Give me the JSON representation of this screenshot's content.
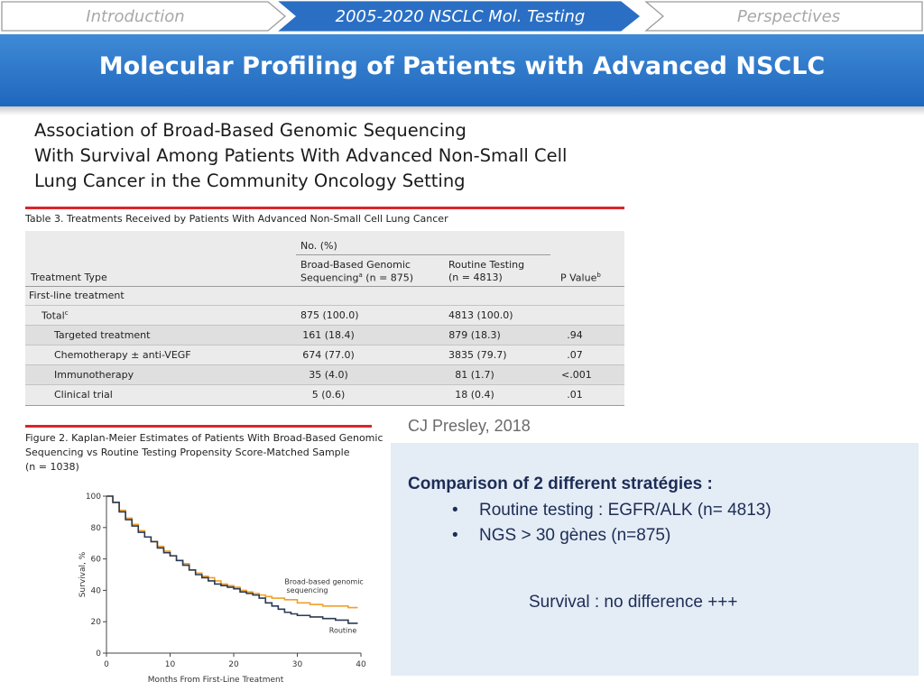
{
  "nav": {
    "steps": [
      {
        "label": "Introduction",
        "active": false
      },
      {
        "label": "2005-2020 NSCLC Mol. Testing",
        "active": true
      },
      {
        "label": "Perspectives",
        "active": false
      }
    ],
    "active_color": "#2a6fc4"
  },
  "banner": {
    "title": "Molecular Profiling of Patients with Advanced NSCLC"
  },
  "paper": {
    "title_lines": [
      "Association of Broad-Based Genomic Sequencing",
      "With Survival Among Patients With Advanced Non-Small Cell",
      "Lung Cancer in the Community Oncology Setting"
    ],
    "accent_color": "#d9262a"
  },
  "table": {
    "caption": "Table 3. Treatments Received by Patients With Advanced Non-Small Cell Lung Cancer",
    "header": {
      "col1": "Treatment Type",
      "group": "No. (%)",
      "col2_line1": "Broad-Based Genomic",
      "col2_line2_pre": "Sequencing",
      "col2_sup": "a",
      "col2_line2_post": " (n = 875)",
      "col3_line1": "Routine Testing",
      "col3_line2": "(n = 4813)",
      "col4": "P Value",
      "col4_sup": "b"
    },
    "section": "First-line treatment",
    "total": {
      "label": "Total",
      "sup": "c",
      "bbgs": "875 (100.0)",
      "routine": "4813 (100.0)"
    },
    "rows": [
      {
        "label": "Targeted treatment",
        "bbgs": "161 (18.4)",
        "routine": "879 (18.3)",
        "p": ".94"
      },
      {
        "label": "Chemotherapy ± anti-VEGF",
        "bbgs": "674 (77.0)",
        "routine": "3835 (79.7)",
        "p": ".07"
      },
      {
        "label": "Immunotherapy",
        "bbgs": "35 (4.0)",
        "routine": "81 (1.7)",
        "p": "<.001"
      },
      {
        "label": "Clinical trial",
        "bbgs": "5 (0.6)",
        "routine": "18 (0.4)",
        "p": ".01"
      }
    ]
  },
  "figure": {
    "caption_lines": [
      "Figure 2. Kaplan-Meier Estimates of Patients With Broad-Based Genomic",
      "Sequencing vs Routine Testing Propensity Score-Matched Sample",
      "(n = 1038)"
    ]
  },
  "chart_data": {
    "type": "line",
    "title": "",
    "xlabel": "Months From First-Line Treatment",
    "ylabel": "Survival, %",
    "xlim": [
      0,
      40
    ],
    "ylim": [
      0,
      100
    ],
    "xticks": [
      0,
      10,
      20,
      30,
      40
    ],
    "yticks": [
      0,
      20,
      40,
      60,
      80,
      100
    ],
    "grid": false,
    "series": [
      {
        "name": "Broad-based genomic sequencing",
        "label_lines": [
          "Broad-based genomic",
          "sequencing"
        ],
        "color": "#f0a028",
        "x": [
          0,
          1,
          2,
          3,
          4,
          5,
          6,
          7,
          8,
          9,
          10,
          11,
          12,
          13,
          14,
          15,
          16,
          17,
          18,
          19,
          20,
          21,
          22,
          23,
          24,
          25,
          26,
          27,
          28,
          29,
          30,
          32,
          34,
          36,
          38,
          39.5
        ],
        "y": [
          100,
          96,
          91,
          86,
          82,
          78,
          74,
          71,
          68,
          65,
          62,
          59,
          57,
          53,
          51,
          49,
          48,
          46,
          44,
          43,
          42,
          40,
          39,
          38,
          37,
          36,
          35,
          35,
          34,
          34,
          32,
          31,
          30,
          30,
          29,
          29
        ]
      },
      {
        "name": "Routine",
        "label_lines": [
          "Routine"
        ],
        "color": "#2b3a55",
        "x": [
          0,
          1,
          2,
          3,
          4,
          5,
          6,
          7,
          8,
          9,
          10,
          11,
          12,
          13,
          14,
          15,
          16,
          17,
          18,
          19,
          20,
          21,
          22,
          23,
          24,
          25,
          26,
          27,
          28,
          29,
          30,
          32,
          34,
          36,
          38,
          39.5
        ],
        "y": [
          100,
          96,
          90,
          85,
          81,
          77,
          74,
          71,
          67,
          64,
          62,
          59,
          56,
          53,
          50,
          48,
          46,
          44,
          43,
          42,
          41,
          39,
          38,
          37,
          35,
          32,
          30,
          28,
          26,
          25,
          24,
          23,
          22,
          21,
          19,
          19
        ]
      }
    ]
  },
  "citation": "CJ Presley, 2018",
  "comparison": {
    "heading": "Comparison of 2 different stratégies :",
    "bullet_char": "•",
    "bullets": [
      "Routine testing : EGFR/ALK (n= 4813)",
      "NGS > 30 gènes (n=875)"
    ],
    "footer": "Survival : no difference +++"
  }
}
